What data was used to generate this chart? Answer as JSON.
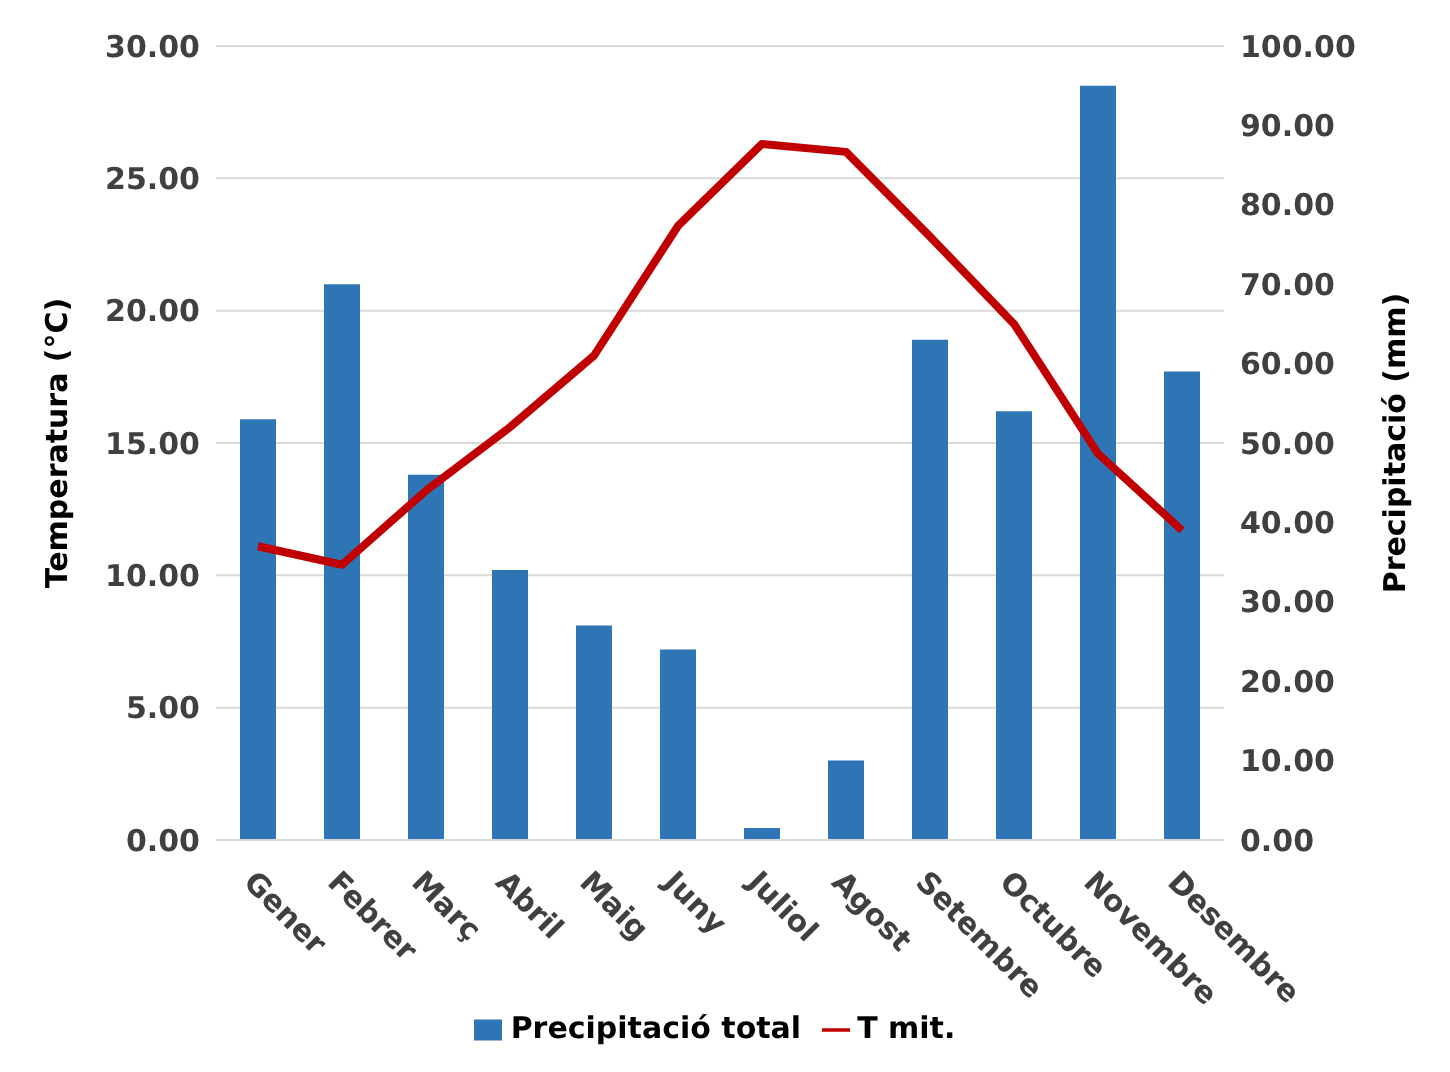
{
  "chart_data": {
    "type": "bar",
    "categories": [
      "Gener",
      "Febrer",
      "Març",
      "Abril",
      "Maig",
      "Juny",
      "Juliol",
      "Agost",
      "Setembre",
      "Octubre",
      "Novembre",
      "Desembre"
    ],
    "series": [
      {
        "name": "Precipitació total",
        "axis": "y2",
        "color": "#2e75b6",
        "values": [
          53,
          70,
          46,
          34,
          27,
          24,
          1.5,
          10,
          63,
          54,
          95,
          59
        ]
      },
      {
        "name": "T mit.",
        "type": "line",
        "axis": "y",
        "color": "#c00000",
        "values": [
          11.1,
          10.4,
          13.2,
          15.6,
          18.3,
          23.2,
          26.3,
          26.0,
          22.8,
          19.5,
          14.6,
          11.7
        ]
      }
    ],
    "ylabel": "Temperatura (°C)",
    "y2label": "Precipitació (mm)",
    "ylim": [
      0,
      30
    ],
    "yticks": [
      {
        "value": 0,
        "label": "0.00"
      },
      {
        "value": 5,
        "label": "5.00"
      },
      {
        "value": 10,
        "label": "10.00"
      },
      {
        "value": 15,
        "label": "15.00"
      },
      {
        "value": 20,
        "label": "20.00"
      },
      {
        "value": 25,
        "label": "25.00"
      },
      {
        "value": 30,
        "label": "30.00"
      }
    ],
    "y2lim": [
      0,
      100
    ],
    "y2ticks": [
      {
        "value": 0,
        "label": "0.00"
      },
      {
        "value": 10,
        "label": "10.00"
      },
      {
        "value": 20,
        "label": "20.00"
      },
      {
        "value": 30,
        "label": "30.00"
      },
      {
        "value": 40,
        "label": "40.00"
      },
      {
        "value": 50,
        "label": "50.00"
      },
      {
        "value": 60,
        "label": "60.00"
      },
      {
        "value": 70,
        "label": "70.00"
      },
      {
        "value": 80,
        "label": "80.00"
      },
      {
        "value": 90,
        "label": "90.00"
      },
      {
        "value": 100,
        "label": "100.00"
      }
    ],
    "grid": "y",
    "legend": "bottom",
    "marker": "none",
    "line_style": "solid"
  }
}
